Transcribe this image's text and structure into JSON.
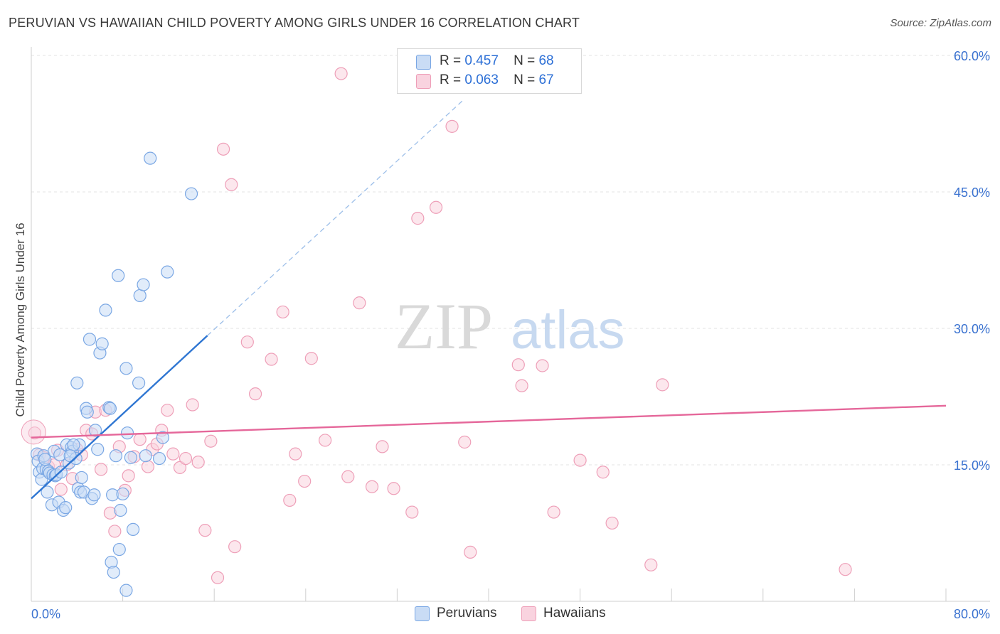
{
  "title": "PERUVIAN VS HAWAIIAN CHILD POVERTY AMONG GIRLS UNDER 16 CORRELATION CHART",
  "source": "Source: ZipAtlas.com",
  "watermark": {
    "zip": "ZIP",
    "atlas": "atlas"
  },
  "legend_stats": [
    {
      "r_label": "R =",
      "r_value": "0.457",
      "n_label": "N =",
      "n_value": "68"
    },
    {
      "r_label": "R =",
      "r_value": "0.063",
      "n_label": "N =",
      "n_value": "67"
    }
  ],
  "colors": {
    "blue_fill": "#c9dcf5",
    "blue_stroke": "#7aa7e4",
    "blue_line": "#2f76d2",
    "pink_fill": "#f9d3df",
    "pink_stroke": "#ee9fb8",
    "pink_line": "#e5679a",
    "tick_text": "#3a72d0",
    "grid": "#e3e3e3"
  },
  "chart_data": {
    "type": "scatter",
    "title": "PERUVIAN VS HAWAIIAN CHILD POVERTY AMONG GIRLS UNDER 16 CORRELATION CHART",
    "xlabel": "",
    "ylabel": "Child Poverty Among Girls Under 16",
    "xlim": [
      0,
      80
    ],
    "ylim": [
      0,
      60
    ],
    "x_tick_labels": [
      "0.0%",
      "80.0%"
    ],
    "y_ticks": [
      15,
      30,
      45,
      60
    ],
    "y_tick_labels": [
      "15.0%",
      "30.0%",
      "45.0%",
      "60.0%"
    ],
    "grid": "horizontal dashed",
    "legend_position": "top-center",
    "series": [
      {
        "name": "Peruvians",
        "color": "#7aa7e4",
        "points": [
          [
            0.5,
            16.2
          ],
          [
            0.6,
            15.4
          ],
          [
            0.7,
            14.2
          ],
          [
            0.9,
            13.4
          ],
          [
            1.0,
            14.6
          ],
          [
            1.1,
            16.0
          ],
          [
            1.3,
            14.5
          ],
          [
            1.4,
            12.0
          ],
          [
            1.5,
            14.3
          ],
          [
            1.6,
            14.1
          ],
          [
            1.8,
            10.6
          ],
          [
            1.9,
            13.9
          ],
          [
            2.0,
            16.5
          ],
          [
            2.1,
            13.8
          ],
          [
            2.2,
            13.9
          ],
          [
            2.4,
            10.9
          ],
          [
            2.6,
            14.2
          ],
          [
            2.8,
            10.0
          ],
          [
            3.0,
            10.3
          ],
          [
            3.1,
            17.2
          ],
          [
            3.3,
            15.2
          ],
          [
            3.5,
            16.9
          ],
          [
            3.6,
            16.5
          ],
          [
            3.9,
            15.7
          ],
          [
            4.1,
            12.4
          ],
          [
            4.2,
            17.2
          ],
          [
            4.3,
            12.0
          ],
          [
            4.4,
            13.6
          ],
          [
            4.6,
            12.0
          ],
          [
            4.8,
            21.2
          ],
          [
            4.9,
            20.8
          ],
          [
            5.1,
            28.8
          ],
          [
            5.3,
            11.3
          ],
          [
            5.5,
            11.7
          ],
          [
            5.8,
            16.7
          ],
          [
            6.0,
            27.3
          ],
          [
            6.2,
            28.3
          ],
          [
            6.5,
            32.0
          ],
          [
            6.8,
            21.3
          ],
          [
            7.0,
            4.3
          ],
          [
            7.1,
            11.7
          ],
          [
            7.2,
            3.2
          ],
          [
            7.4,
            16.0
          ],
          [
            7.7,
            5.7
          ],
          [
            7.8,
            10.0
          ],
          [
            8.0,
            11.8
          ],
          [
            8.3,
            25.6
          ],
          [
            8.4,
            18.5
          ],
          [
            8.7,
            15.8
          ],
          [
            8.3,
            1.2
          ],
          [
            8.9,
            7.9
          ],
          [
            9.4,
            24.0
          ],
          [
            9.5,
            33.6
          ],
          [
            9.8,
            34.8
          ],
          [
            10.0,
            16.0
          ],
          [
            10.4,
            48.7
          ],
          [
            11.5,
            18.0
          ],
          [
            11.9,
            36.2
          ],
          [
            11.2,
            15.7
          ],
          [
            14.0,
            44.8
          ],
          [
            3.7,
            17.2
          ],
          [
            2.5,
            16.1
          ],
          [
            1.2,
            15.6
          ],
          [
            4.0,
            24.0
          ],
          [
            3.4,
            16.0
          ],
          [
            6.9,
            21.2
          ],
          [
            5.6,
            18.8
          ],
          [
            7.6,
            35.8
          ]
        ]
      },
      {
        "name": "Hawaiians",
        "color": "#ee9fb8",
        "points": [
          [
            0.3,
            18.5
          ],
          [
            0.7,
            16.1
          ],
          [
            1.1,
            15.8
          ],
          [
            1.5,
            14.8
          ],
          [
            2.0,
            15.0
          ],
          [
            2.3,
            16.6
          ],
          [
            2.6,
            12.3
          ],
          [
            3.1,
            15.0
          ],
          [
            3.6,
            13.5
          ],
          [
            4.0,
            16.7
          ],
          [
            4.4,
            16.1
          ],
          [
            4.8,
            18.8
          ],
          [
            5.3,
            18.4
          ],
          [
            5.6,
            20.8
          ],
          [
            6.1,
            14.5
          ],
          [
            6.5,
            21.0
          ],
          [
            6.9,
            9.7
          ],
          [
            7.3,
            7.7
          ],
          [
            7.7,
            17.0
          ],
          [
            8.2,
            12.2
          ],
          [
            8.5,
            13.8
          ],
          [
            9.0,
            15.9
          ],
          [
            9.5,
            17.8
          ],
          [
            10.2,
            14.8
          ],
          [
            10.6,
            16.7
          ],
          [
            11.0,
            17.3
          ],
          [
            11.4,
            18.8
          ],
          [
            11.9,
            21.0
          ],
          [
            12.4,
            16.2
          ],
          [
            13.0,
            14.7
          ],
          [
            13.5,
            15.7
          ],
          [
            14.1,
            21.6
          ],
          [
            14.6,
            15.3
          ],
          [
            15.2,
            7.8
          ],
          [
            15.7,
            17.6
          ],
          [
            16.3,
            2.6
          ],
          [
            16.8,
            49.7
          ],
          [
            17.5,
            45.8
          ],
          [
            17.8,
            6.0
          ],
          [
            18.9,
            28.5
          ],
          [
            19.6,
            22.8
          ],
          [
            21.0,
            26.6
          ],
          [
            22.0,
            31.8
          ],
          [
            22.6,
            11.1
          ],
          [
            23.1,
            16.2
          ],
          [
            23.9,
            13.2
          ],
          [
            24.5,
            26.7
          ],
          [
            25.7,
            17.7
          ],
          [
            27.1,
            58.0
          ],
          [
            27.7,
            13.7
          ],
          [
            28.7,
            32.8
          ],
          [
            29.8,
            12.6
          ],
          [
            30.7,
            17.0
          ],
          [
            31.7,
            12.4
          ],
          [
            33.3,
            9.8
          ],
          [
            33.8,
            42.1
          ],
          [
            35.4,
            43.3
          ],
          [
            36.8,
            52.2
          ],
          [
            37.9,
            17.5
          ],
          [
            38.4,
            5.4
          ],
          [
            42.6,
            26.0
          ],
          [
            42.9,
            23.7
          ],
          [
            44.7,
            25.9
          ],
          [
            45.7,
            9.8
          ],
          [
            48.0,
            15.5
          ],
          [
            50.0,
            14.2
          ],
          [
            50.8,
            8.6
          ]
        ]
      }
    ],
    "extra_points": [
      {
        "series": "Hawaiians",
        "point": [
          54.2,
          4.0
        ]
      },
      {
        "series": "Hawaiians",
        "point": [
          55.2,
          23.8
        ]
      },
      {
        "series": "Hawaiians",
        "point": [
          71.2,
          3.5
        ]
      }
    ],
    "trendlines": [
      {
        "series": "Peruvians",
        "solid_from": [
          0,
          11.3
        ],
        "solid_to": [
          15.4,
          29.2
        ],
        "dashed_to": [
          37.7,
          55.0
        ]
      },
      {
        "series": "Hawaiians",
        "from": [
          0,
          18.0
        ],
        "to": [
          80,
          21.5
        ]
      }
    ]
  },
  "legend_bottom": [
    {
      "label": "Peruvians"
    },
    {
      "label": "Hawaiians"
    }
  ]
}
